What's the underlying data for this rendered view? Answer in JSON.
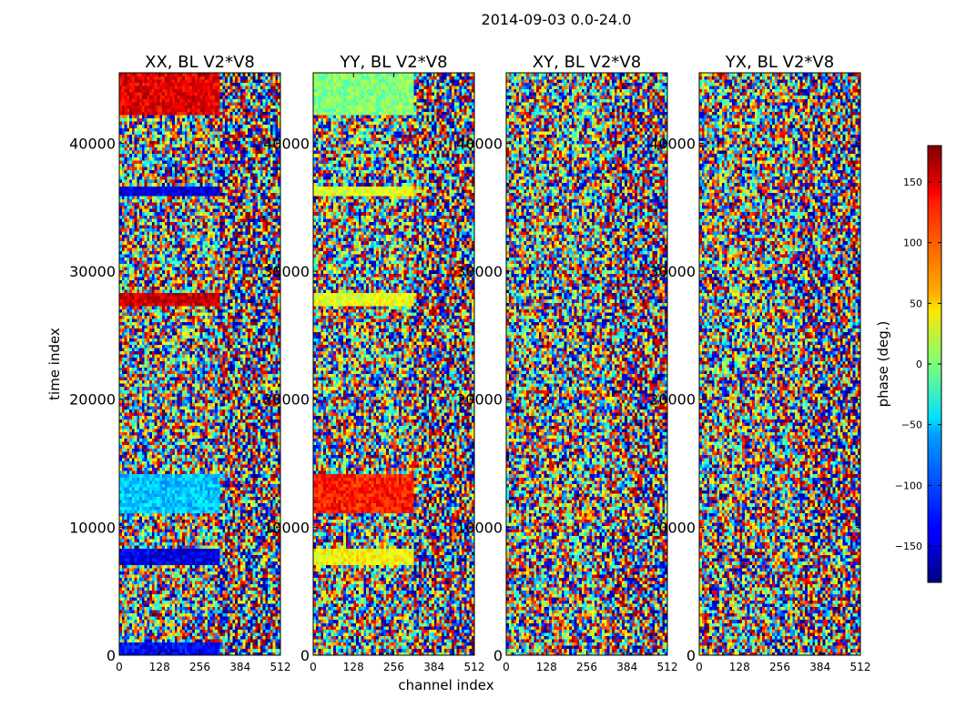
{
  "figure": {
    "title": "2014-09-03 0.0-24.0"
  },
  "chart_data": {
    "type": "heatmap",
    "shared_xlabel": "channel index",
    "shared_ylabel": "time index",
    "xlim": [
      0,
      512
    ],
    "ylim": [
      0,
      45500
    ],
    "x_ticks": [
      "0",
      "128",
      "256",
      "384",
      "512"
    ],
    "y_ticks": [
      "0",
      "10000",
      "20000",
      "30000",
      "40000"
    ],
    "panels": [
      {
        "title": "XX, BL V2*V8"
      },
      {
        "title": "YY, BL V2*V8"
      },
      {
        "title": "XY, BL V2*V8"
      },
      {
        "title": "YX, BL V2*V8"
      }
    ],
    "colorbar": {
      "label": "phase (deg.)",
      "range": [
        -180,
        180
      ],
      "ticks": [
        "−150",
        "−100",
        "−50",
        "0",
        "50",
        "100",
        "150"
      ],
      "colormap": "jet"
    }
  }
}
